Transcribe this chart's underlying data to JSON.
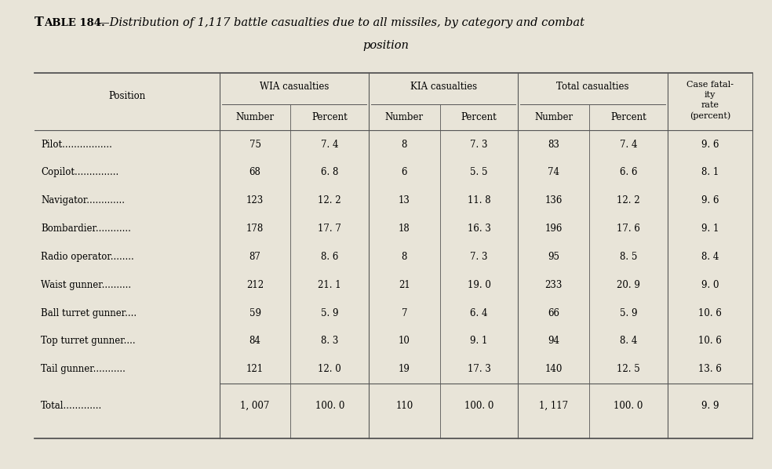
{
  "background_color": "#e8e4d8",
  "title_prefix": "T\u0000ABLE 184.",
  "title_body": "—Distribution of 1,117 battle casualties due to all missiles, by category and combat",
  "title_line2": "position",
  "group_headers": [
    "WIA casualties",
    "KIA casualties",
    "Total casualties"
  ],
  "sub_headers": [
    "Number",
    "Percent",
    "Number",
    "Percent",
    "Number",
    "Percent"
  ],
  "last_col_header": [
    "Case fatal-",
    "ity",
    "rate",
    "(percent)"
  ],
  "position_col_header": "Position",
  "position_labels": [
    "Pilot.................",
    "Copilot...............",
    "Navigator.............",
    "Bombardier............",
    "Radio operator........",
    "Waist gunner..........",
    "Ball turret gunner....",
    "Top turret gunner....",
    "Tail gunner..........."
  ],
  "data": [
    [
      "75",
      "7. 4",
      "8",
      "7. 3",
      "83",
      "7. 4",
      "9. 6"
    ],
    [
      "68",
      "6. 8",
      "6",
      "5. 5",
      "74",
      "6. 6",
      "8. 1"
    ],
    [
      "123",
      "12. 2",
      "13",
      "11. 8",
      "136",
      "12. 2",
      "9. 6"
    ],
    [
      "178",
      "17. 7",
      "18",
      "16. 3",
      "196",
      "17. 6",
      "9. 1"
    ],
    [
      "87",
      "8. 6",
      "8",
      "7. 3",
      "95",
      "8. 5",
      "8. 4"
    ],
    [
      "212",
      "21. 1",
      "21",
      "19. 0",
      "233",
      "20. 9",
      "9. 0"
    ],
    [
      "59",
      "5. 9",
      "7",
      "6. 4",
      "66",
      "5. 9",
      "10. 6"
    ],
    [
      "84",
      "8. 3",
      "10",
      "9. 1",
      "94",
      "8. 4",
      "10. 6"
    ],
    [
      "121",
      "12. 0",
      "19",
      "17. 3",
      "140",
      "12. 5",
      "13. 6"
    ]
  ],
  "total_label": "Total.............",
  "total_row": [
    "1, 007",
    "100. 0",
    "110",
    "100. 0",
    "1, 117",
    "100. 0",
    "9. 9"
  ],
  "font_size": 8.5,
  "title_font_size": 10.5,
  "line_color": "#555555"
}
